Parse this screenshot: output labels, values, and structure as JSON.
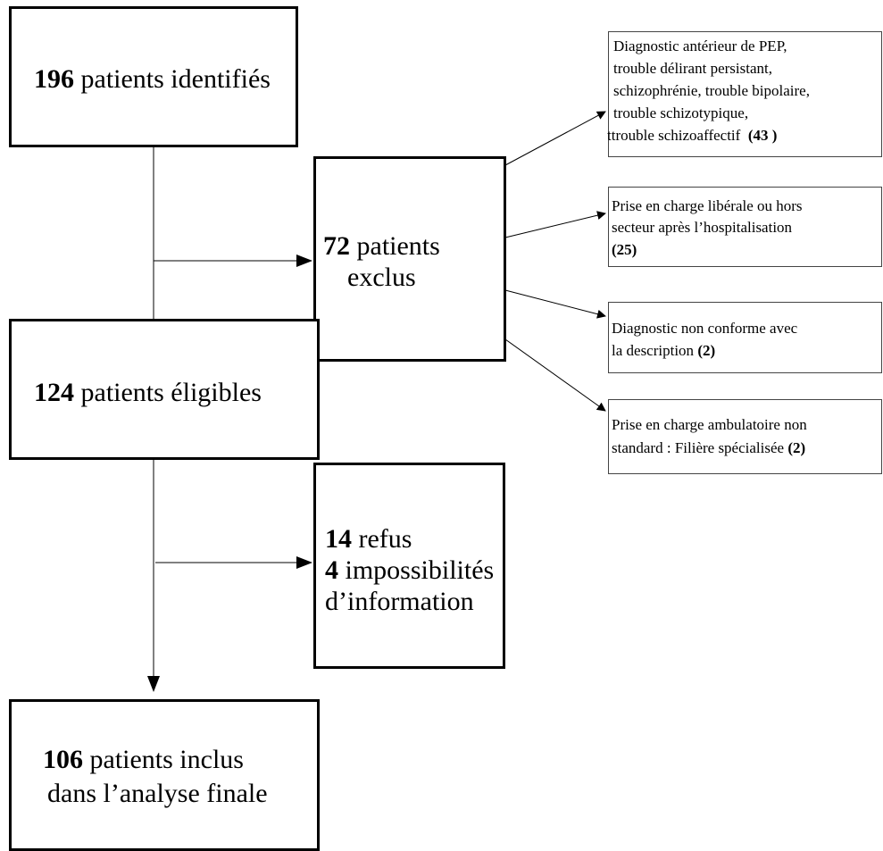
{
  "flow": {
    "identified": {
      "count": "196",
      "label": "patients identifiés"
    },
    "excluded": {
      "count": "72",
      "label_line1": "patients",
      "label_line2": "exclus"
    },
    "eligible": {
      "count": "124",
      "label": "patients éligibles"
    },
    "refusals": {
      "refus_count": "14",
      "refus_label": "refus",
      "impossible_count": "4",
      "impossible_label": "impossibilités",
      "line3": "d’information"
    },
    "included": {
      "count": "106",
      "label_line1": "patients inclus",
      "label_line2": "dans l’analyse finale"
    }
  },
  "exclusion_reasons": [
    {
      "lines": [
        "Diagnostic antérieur de PEP,",
        "trouble délirant persistant,",
        "schizophrénie, trouble bipolaire,",
        "trouble schizotypique,",
        "ttrouble schizoaffectif"
      ],
      "count": "(43 )"
    },
    {
      "lines": [
        "Prise en charge libérale ou hors",
        " secteur après l’hospitalisation"
      ],
      "count": "(25)"
    },
    {
      "lines": [
        "Diagnostic non conforme avec",
        "la description"
      ],
      "count": "(2)"
    },
    {
      "lines": [
        "Prise en charge ambulatoire non",
        "standard : Filière spécialisée"
      ],
      "count": "(2)"
    }
  ]
}
